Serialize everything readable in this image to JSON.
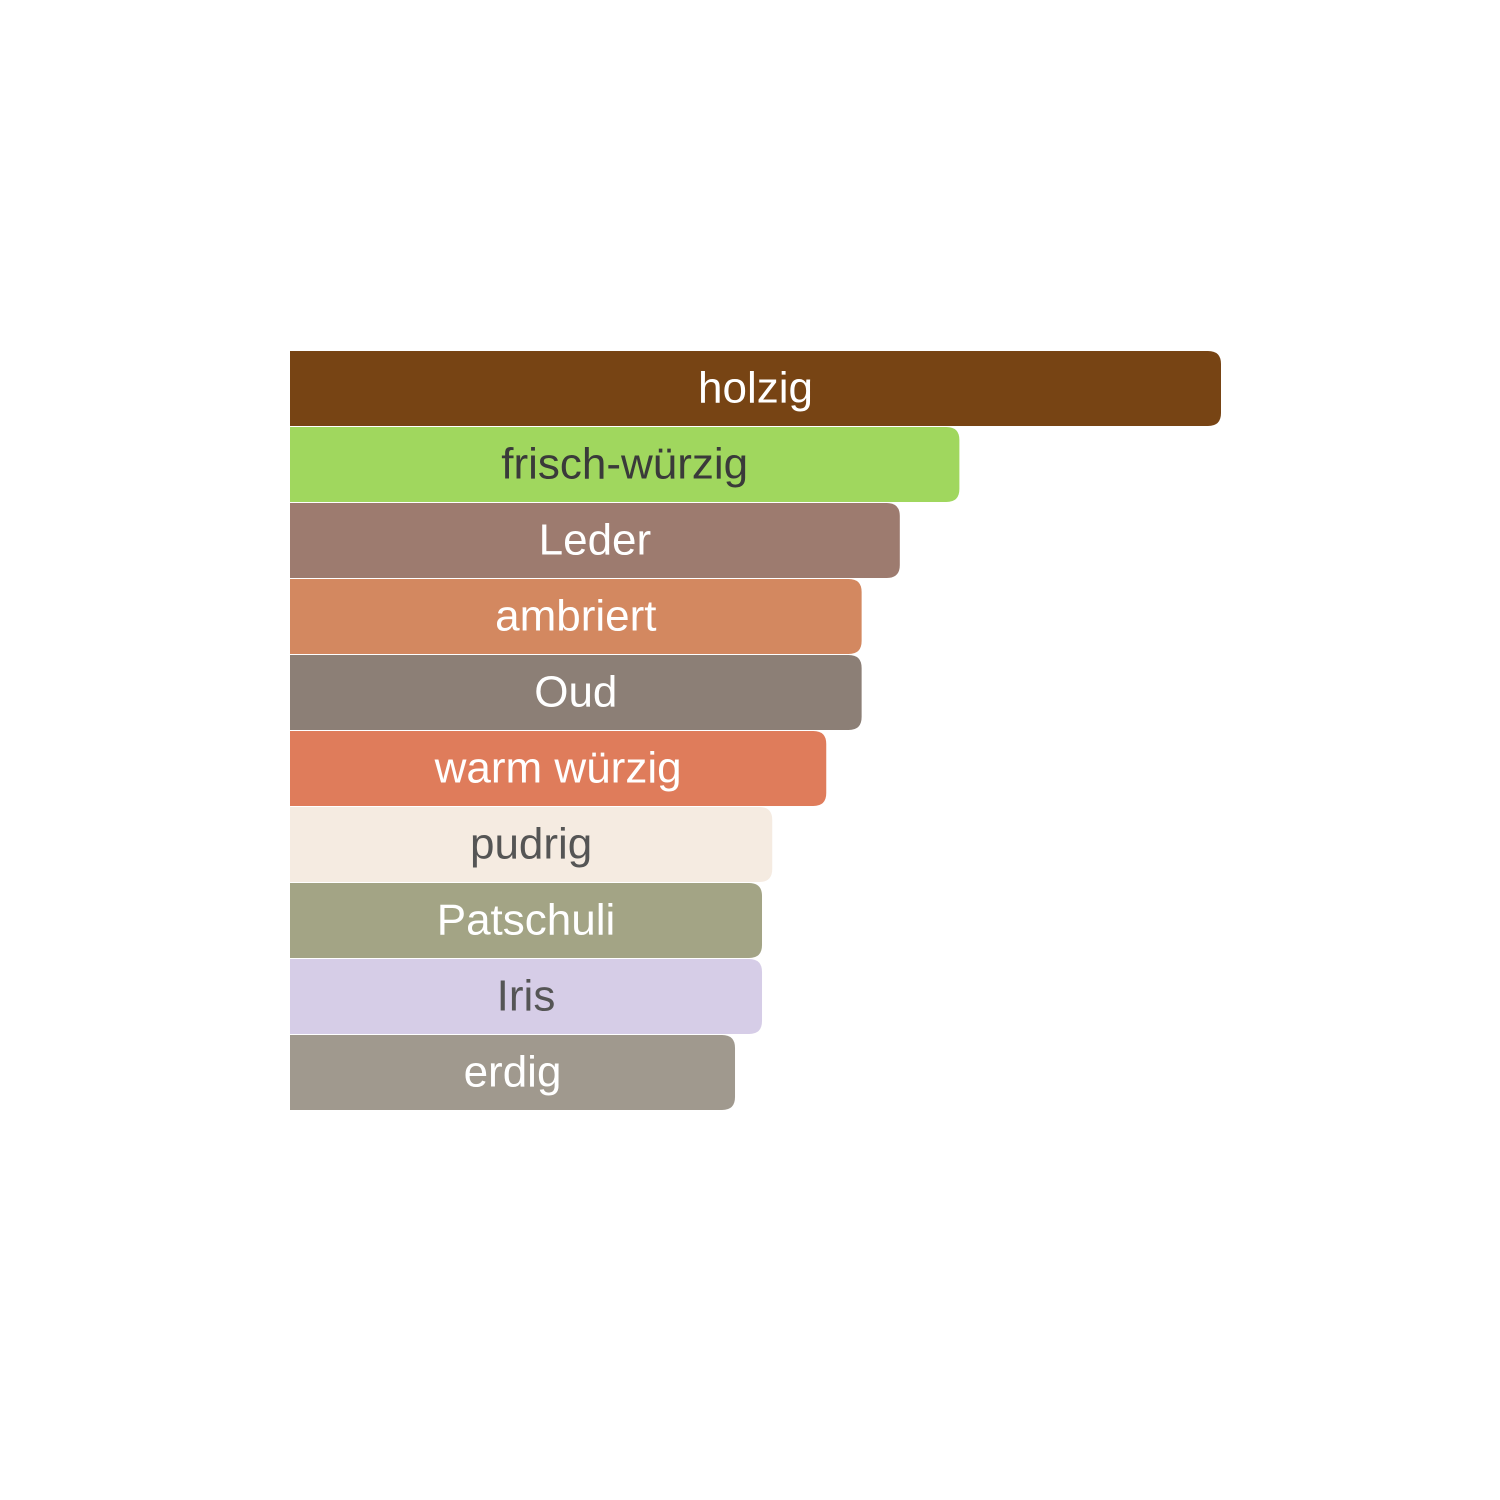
{
  "chart_data": {
    "type": "bar",
    "orientation": "horizontal",
    "categories": [
      "holzig",
      "frisch-würzig",
      "Leder",
      "ambriert",
      "Oud",
      "warm würzig",
      "pudrig",
      "Patschuli",
      "Iris",
      "erdig"
    ],
    "values": [
      100,
      71.9,
      65.5,
      61.4,
      61.4,
      57.6,
      51.8,
      50.7,
      50.7,
      47.8
    ],
    "colors": [
      "#774414",
      "#a0d75e",
      "#9d7b6f",
      "#d38860",
      "#8c7f76",
      "#df7c5b",
      "#f5ebe1",
      "#a3a485",
      "#d6cde7",
      "#a0998e"
    ],
    "label_colors": [
      "#ffffff",
      "#3a3a3a",
      "#ffffff",
      "#ffffff",
      "#ffffff",
      "#ffffff",
      "#555555",
      "#ffffff",
      "#555555",
      "#ffffff"
    ],
    "xlim": [
      0,
      100
    ]
  }
}
